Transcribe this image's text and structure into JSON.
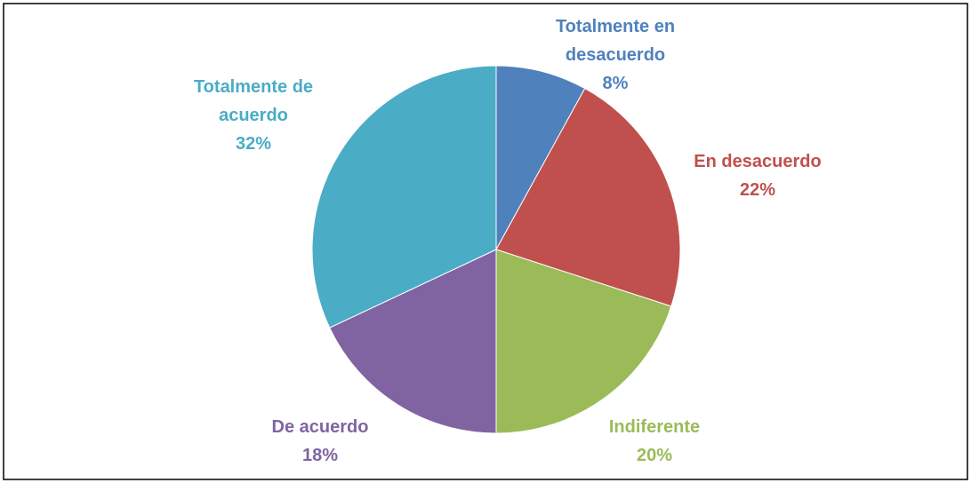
{
  "chart_data": {
    "type": "pie",
    "categories": [
      "Totalmente en desacuerdo",
      "En desacuerdo",
      "Indiferente",
      "De acuerdo",
      "Totalmente de acuerdo"
    ],
    "values": [
      8,
      22,
      20,
      18,
      32
    ],
    "value_labels": [
      "8%",
      "22%",
      "20%",
      "18%",
      "32%"
    ],
    "colors": [
      "#4f81bd",
      "#c0504d",
      "#9bbb59",
      "#8064a2",
      "#4bacc6"
    ]
  }
}
